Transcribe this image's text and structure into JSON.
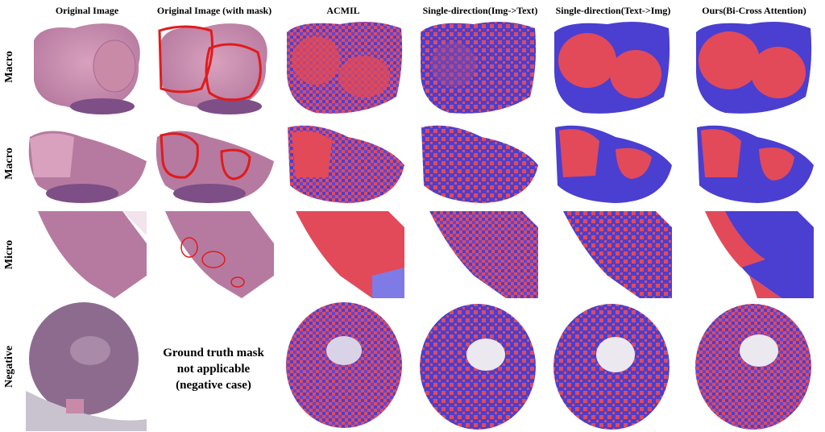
{
  "columns": [
    "Original Image",
    "Original Image (with mask)",
    "ACMIL",
    "Single-direction(Img->Text)",
    "Single-direction(Text->Img)",
    "Ours(Bi-Cross Attention)"
  ],
  "rows": [
    "Macro",
    "Macro",
    "Micro",
    "Negative"
  ],
  "negative_gt_note": [
    "Ground truth mask",
    "not applicable",
    "(negative case)"
  ],
  "colors": {
    "tissue_pink": "#c98aa8",
    "tissue_purple": "#7d4f86",
    "mask_red": "#e11b1b",
    "attention_red": "#e24a5a",
    "attention_blue": "#4a3fd0"
  }
}
